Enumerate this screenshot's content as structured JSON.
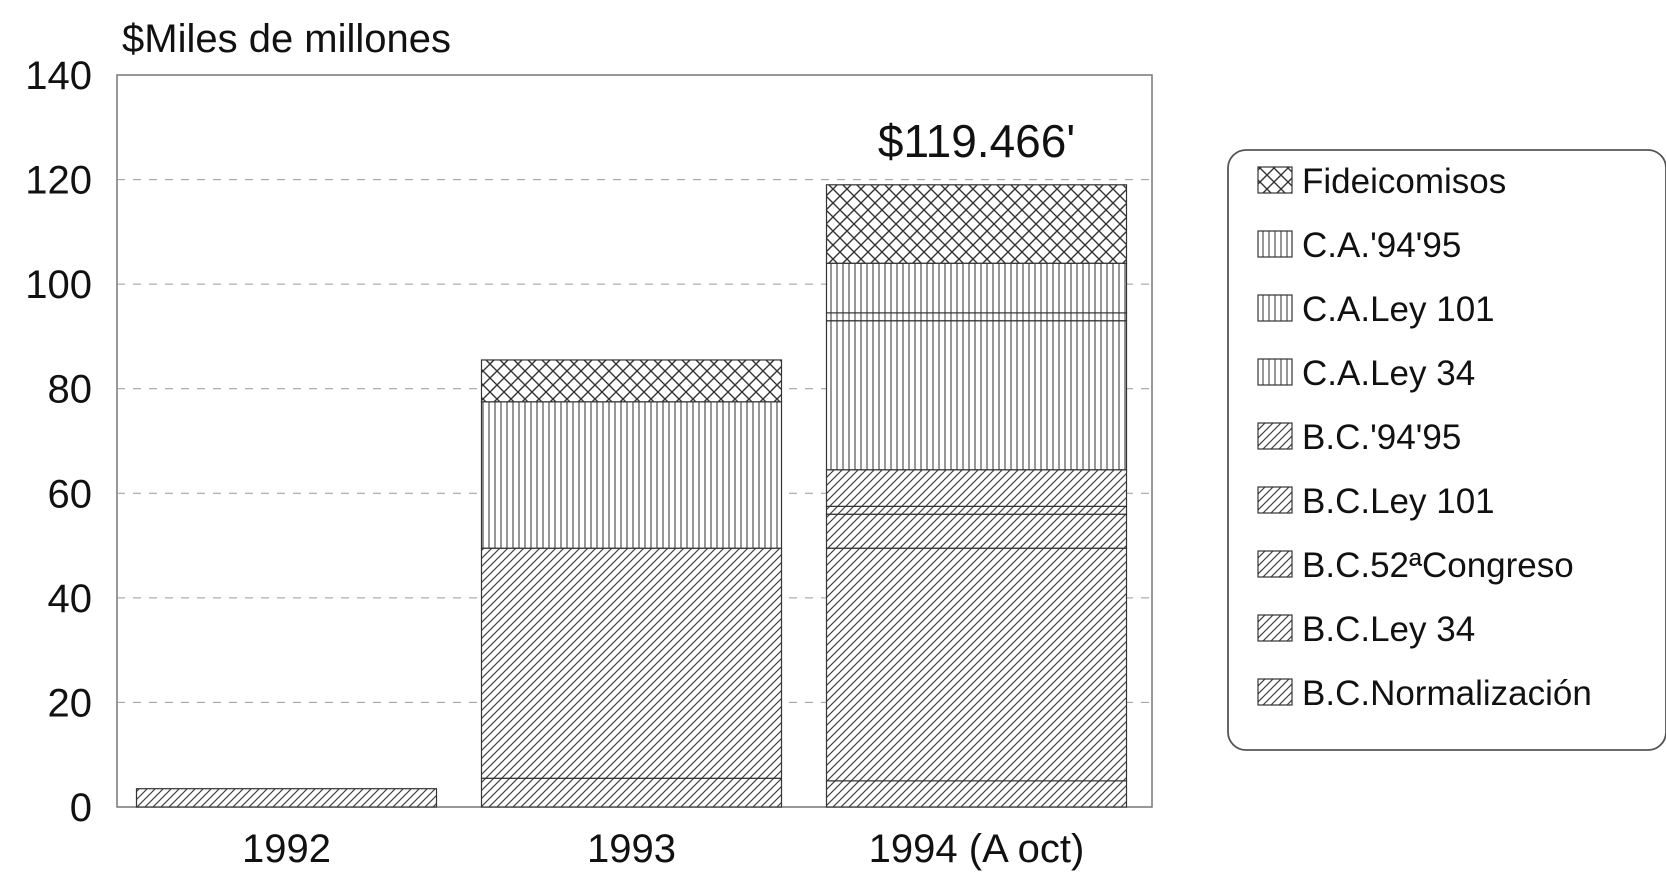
{
  "chart_data": {
    "type": "bar",
    "stacked": true,
    "title": "",
    "unit_label": "$Miles de millones",
    "xlabel": "",
    "ylabel": "",
    "ylim": [
      0,
      140
    ],
    "yticks": [
      0,
      20,
      40,
      60,
      80,
      100,
      120,
      140
    ],
    "grid": "horizontal dashed",
    "legend_position": "right",
    "categories": [
      "1992",
      "1993",
      "1994 (A oct)"
    ],
    "series": [
      {
        "name": "B.C.Normalización",
        "values": [
          3.5,
          5.5,
          5
        ],
        "color": "#555555"
      },
      {
        "name": "B.C.Ley 34",
        "values": [
          0,
          44,
          44.5
        ],
        "color": "#555555"
      },
      {
        "name": "B.C.52ªCongreso",
        "values": [
          0,
          0,
          6.5
        ],
        "color": "#555555"
      },
      {
        "name": "B.C.Ley 101",
        "values": [
          0,
          0,
          1.5
        ],
        "color": "#555555"
      },
      {
        "name": "B.C.'94'95",
        "values": [
          0,
          0,
          7
        ],
        "color": "#555555"
      },
      {
        "name": "C.A.Ley 34",
        "values": [
          0,
          28,
          28.5
        ],
        "color": "#555555"
      },
      {
        "name": "C.A.Ley 101",
        "values": [
          0,
          0,
          1.5
        ],
        "color": "#555555"
      },
      {
        "name": "C.A.'94'95",
        "values": [
          0,
          0,
          9.5
        ],
        "color": "#555555"
      },
      {
        "name": "Fideicomisos",
        "values": [
          0,
          8,
          15
        ],
        "color": "#555555"
      }
    ],
    "annotations": [
      {
        "category": "1994 (A oct)",
        "text": "$119.466'"
      }
    ]
  }
}
